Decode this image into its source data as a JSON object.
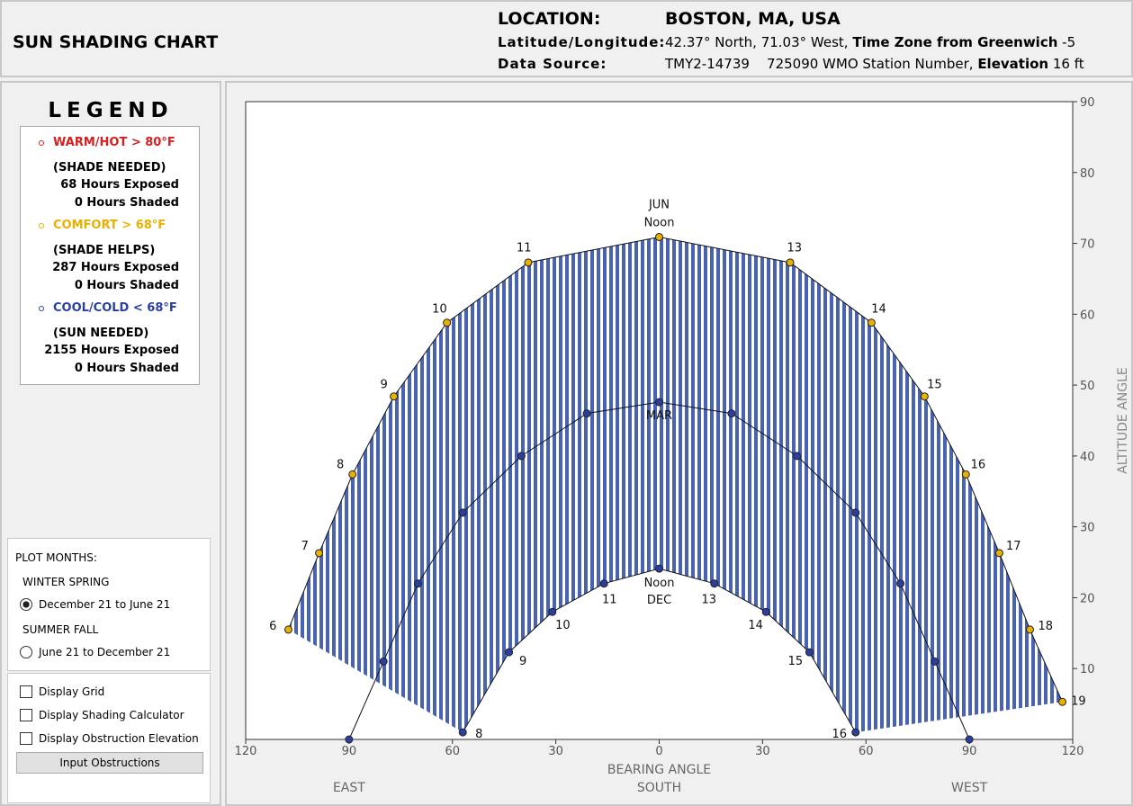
{
  "header": {
    "title": "SUN SHADING CHART",
    "location_label": "LOCATION:",
    "location": "BOSTON, MA, USA",
    "latlon_label": "Latitude/Longitude:",
    "latlon": "42.37° North, 71.03° West,",
    "tz_label": "Time Zone from Greenwich",
    "tz": "-5",
    "source_label": "Data Source:",
    "source": "TMY2-14739",
    "station": "725090 WMO Station Number,",
    "elev_label": "Elevation",
    "elev": "16 ft"
  },
  "legend": {
    "title": "LEGEND",
    "items": [
      {
        "label": "WARM/HOT  > 80°F",
        "color": "#d42020",
        "note": "(SHADE NEEDED)",
        "exposed": "68 Hours Exposed",
        "shaded": "0 Hours Shaded"
      },
      {
        "label": "COMFORT  > 68°F",
        "color": "#e8b000",
        "note": "(SHADE HELPS)",
        "exposed": "287 Hours Exposed",
        "shaded": "0 Hours Shaded"
      },
      {
        "label": "COOL/COLD  < 68°F",
        "color": "#2b3f9e",
        "note": "(SUN NEEDED)",
        "exposed": "2155 Hours Exposed",
        "shaded": "0 Hours Shaded"
      }
    ]
  },
  "plot_months": {
    "title": "PLOT MONTHS:",
    "options": [
      {
        "group": "WINTER SPRING",
        "label": "December 21 to June 21",
        "selected": true
      },
      {
        "group": "SUMMER FALL",
        "label": "June 21 to December 21",
        "selected": false
      }
    ]
  },
  "options": {
    "checkboxes": [
      "Display Grid",
      "Display Shading Calculator",
      "Display Obstruction Elevation"
    ],
    "button": "Input Obstructions"
  },
  "chart_data": {
    "type": "line",
    "x_label": "BEARING ANGLE",
    "y_label": "ALTITUDE ANGLE",
    "xlim": [
      -120,
      120
    ],
    "ylim": [
      0,
      90
    ],
    "xticks": [
      {
        "value": -120,
        "label": "120"
      },
      {
        "value": -90,
        "label": "90"
      },
      {
        "value": -60,
        "label": "60"
      },
      {
        "value": -30,
        "label": "30"
      },
      0,
      30,
      60,
      90,
      120
    ],
    "yticks": [
      10,
      20,
      30,
      40,
      50,
      60,
      70,
      80,
      90
    ],
    "x_direction_labels": [
      {
        "value": -90,
        "label": "EAST"
      },
      {
        "value": 0,
        "label": "SOUTH"
      },
      {
        "value": 90,
        "label": "WEST"
      }
    ],
    "series": [
      {
        "name": "JUN",
        "color": "#e8b000",
        "x": [
          -107.6,
          -98.7,
          -89,
          -77,
          -61.6,
          -38,
          0,
          38,
          61.6,
          77,
          89,
          98.7,
          107.6,
          117
        ],
        "values": [
          15.5,
          26.3,
          37.4,
          48.4,
          58.8,
          67.3,
          70.9,
          67.3,
          58.8,
          48.4,
          37.4,
          26.3,
          15.5,
          5.3
        ],
        "point_labels": [
          "6",
          "7",
          "8",
          "9",
          "10",
          "11",
          "Noon",
          "13",
          "14",
          "15",
          "16",
          "17",
          "18",
          "19"
        ]
      },
      {
        "name": "MAR",
        "color": "#2b3f9e",
        "x": [
          -90,
          -80,
          -70,
          -57,
          -40,
          -21,
          0,
          21,
          40,
          57,
          70,
          80,
          90
        ],
        "values": [
          0,
          11,
          22,
          32,
          40,
          46,
          47.6,
          46,
          40,
          32,
          22,
          11,
          0
        ]
      },
      {
        "name": "DEC",
        "color": "#2b3f9e",
        "x": [
          -57,
          -43.6,
          -31,
          -16,
          0,
          16,
          31,
          43.6,
          57
        ],
        "values": [
          1,
          12.3,
          18,
          22,
          24.1,
          22,
          18,
          12.3,
          1
        ],
        "point_labels": [
          "8",
          "9",
          "10",
          "11",
          "Noon",
          "13",
          "14",
          "15",
          "16"
        ]
      }
    ]
  }
}
